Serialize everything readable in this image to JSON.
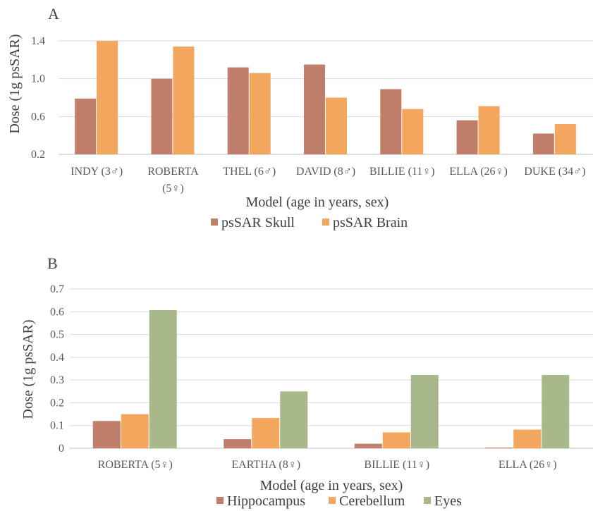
{
  "colors": {
    "skull": "#c07f6a",
    "brain": "#f2a65e",
    "hippocampus": "#c07f6a",
    "cerebellum": "#f2a65e",
    "eyes": "#a9b88a"
  },
  "chart_data": [
    {
      "panel": "A",
      "type": "bar",
      "ylabel": "Dose (1g psSAR)",
      "xlabel": "Model (age in years, sex)",
      "ylim": [
        0.2,
        1.4
      ],
      "yticks": [
        "0.2",
        "0.6",
        "1.0",
        "1.4"
      ],
      "categories": [
        [
          "INDY (3♂)"
        ],
        [
          "ROBERTA",
          "(5♀)"
        ],
        [
          "THEL (6♂)"
        ],
        [
          "DAVID (8♂)"
        ],
        [
          "BILLIE (11♀)"
        ],
        [
          "ELLA (26♀)"
        ],
        [
          "DUKE (34♂)"
        ]
      ],
      "series": [
        {
          "name": "psSAR Skull",
          "color_key": "skull",
          "values": [
            0.79,
            1.0,
            1.12,
            1.15,
            0.89,
            0.56,
            0.42
          ]
        },
        {
          "name": "psSAR Brain",
          "color_key": "brain",
          "values": [
            1.4,
            1.34,
            1.06,
            0.8,
            0.68,
            0.71,
            0.52
          ]
        }
      ],
      "legend_position": "bottom",
      "grid": true
    },
    {
      "panel": "B",
      "type": "bar",
      "ylabel": "Dose (1g psSAR)",
      "xlabel": "Model (age in years, sex)",
      "ylim": [
        0,
        0.7
      ],
      "yticks": [
        "0",
        "0.1",
        "0.2",
        "0.3",
        "0.4",
        "0.5",
        "0.6",
        "0.7"
      ],
      "categories": [
        [
          "ROBERTA (5♀)"
        ],
        [
          "EARTHA (8♀)"
        ],
        [
          "BILLIE (11♀)"
        ],
        [
          "ELLA (26♀)"
        ]
      ],
      "series": [
        {
          "name": "Hippocampus",
          "color_key": "hippocampus",
          "values": [
            0.12,
            0.04,
            0.02,
            0.003
          ]
        },
        {
          "name": "Cerebellum",
          "color_key": "cerebellum",
          "values": [
            0.15,
            0.133,
            0.07,
            0.082
          ]
        },
        {
          "name": "Eyes",
          "color_key": "eyes",
          "values": [
            0.607,
            0.25,
            0.322,
            0.322
          ]
        }
      ],
      "legend_position": "bottom",
      "grid": true
    }
  ]
}
